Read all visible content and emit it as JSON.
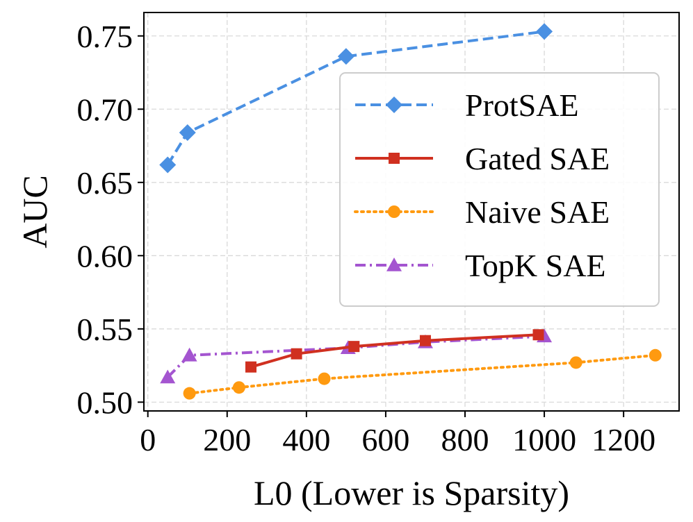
{
  "chart_data": {
    "type": "line",
    "title": "",
    "xlabel": "L0 (Lower is Sparsity)",
    "ylabel": "AUC",
    "xlim": [
      -10,
      1340
    ],
    "ylim": [
      0.494,
      0.766
    ],
    "xticks": [
      0,
      200,
      400,
      600,
      800,
      1000,
      1200
    ],
    "xtick_labels": [
      "0",
      "200",
      "400",
      "600",
      "800",
      "1000",
      "1200"
    ],
    "yticks": [
      0.5,
      0.55,
      0.6,
      0.65,
      0.7,
      0.75
    ],
    "ytick_labels": [
      "0.50",
      "0.55",
      "0.60",
      "0.65",
      "0.70",
      "0.75"
    ],
    "grid": true,
    "legend_position": "upper-right",
    "series": [
      {
        "name": "ProtSAE",
        "color": "#4a90e2",
        "linestyle": "dashed",
        "marker": "diamond",
        "x": [
          50,
          100,
          500,
          1000
        ],
        "y": [
          0.662,
          0.684,
          0.736,
          0.753
        ]
      },
      {
        "name": "Gated SAE",
        "color": "#d03020",
        "linestyle": "solid",
        "marker": "square",
        "x": [
          260,
          375,
          520,
          700,
          985
        ],
        "y": [
          0.524,
          0.533,
          0.538,
          0.542,
          0.546
        ]
      },
      {
        "name": "Naive SAE",
        "color": "#ff9a10",
        "linestyle": "dotted",
        "marker": "circle",
        "x": [
          105,
          230,
          445,
          1080,
          1280
        ],
        "y": [
          0.506,
          0.51,
          0.516,
          0.527,
          0.532
        ]
      },
      {
        "name": "TopK SAE",
        "color": "#a455d0",
        "linestyle": "dashdot",
        "marker": "triangle",
        "x": [
          50,
          105,
          505,
          700,
          1000
        ],
        "y": [
          0.517,
          0.532,
          0.537,
          0.541,
          0.545
        ]
      }
    ]
  }
}
